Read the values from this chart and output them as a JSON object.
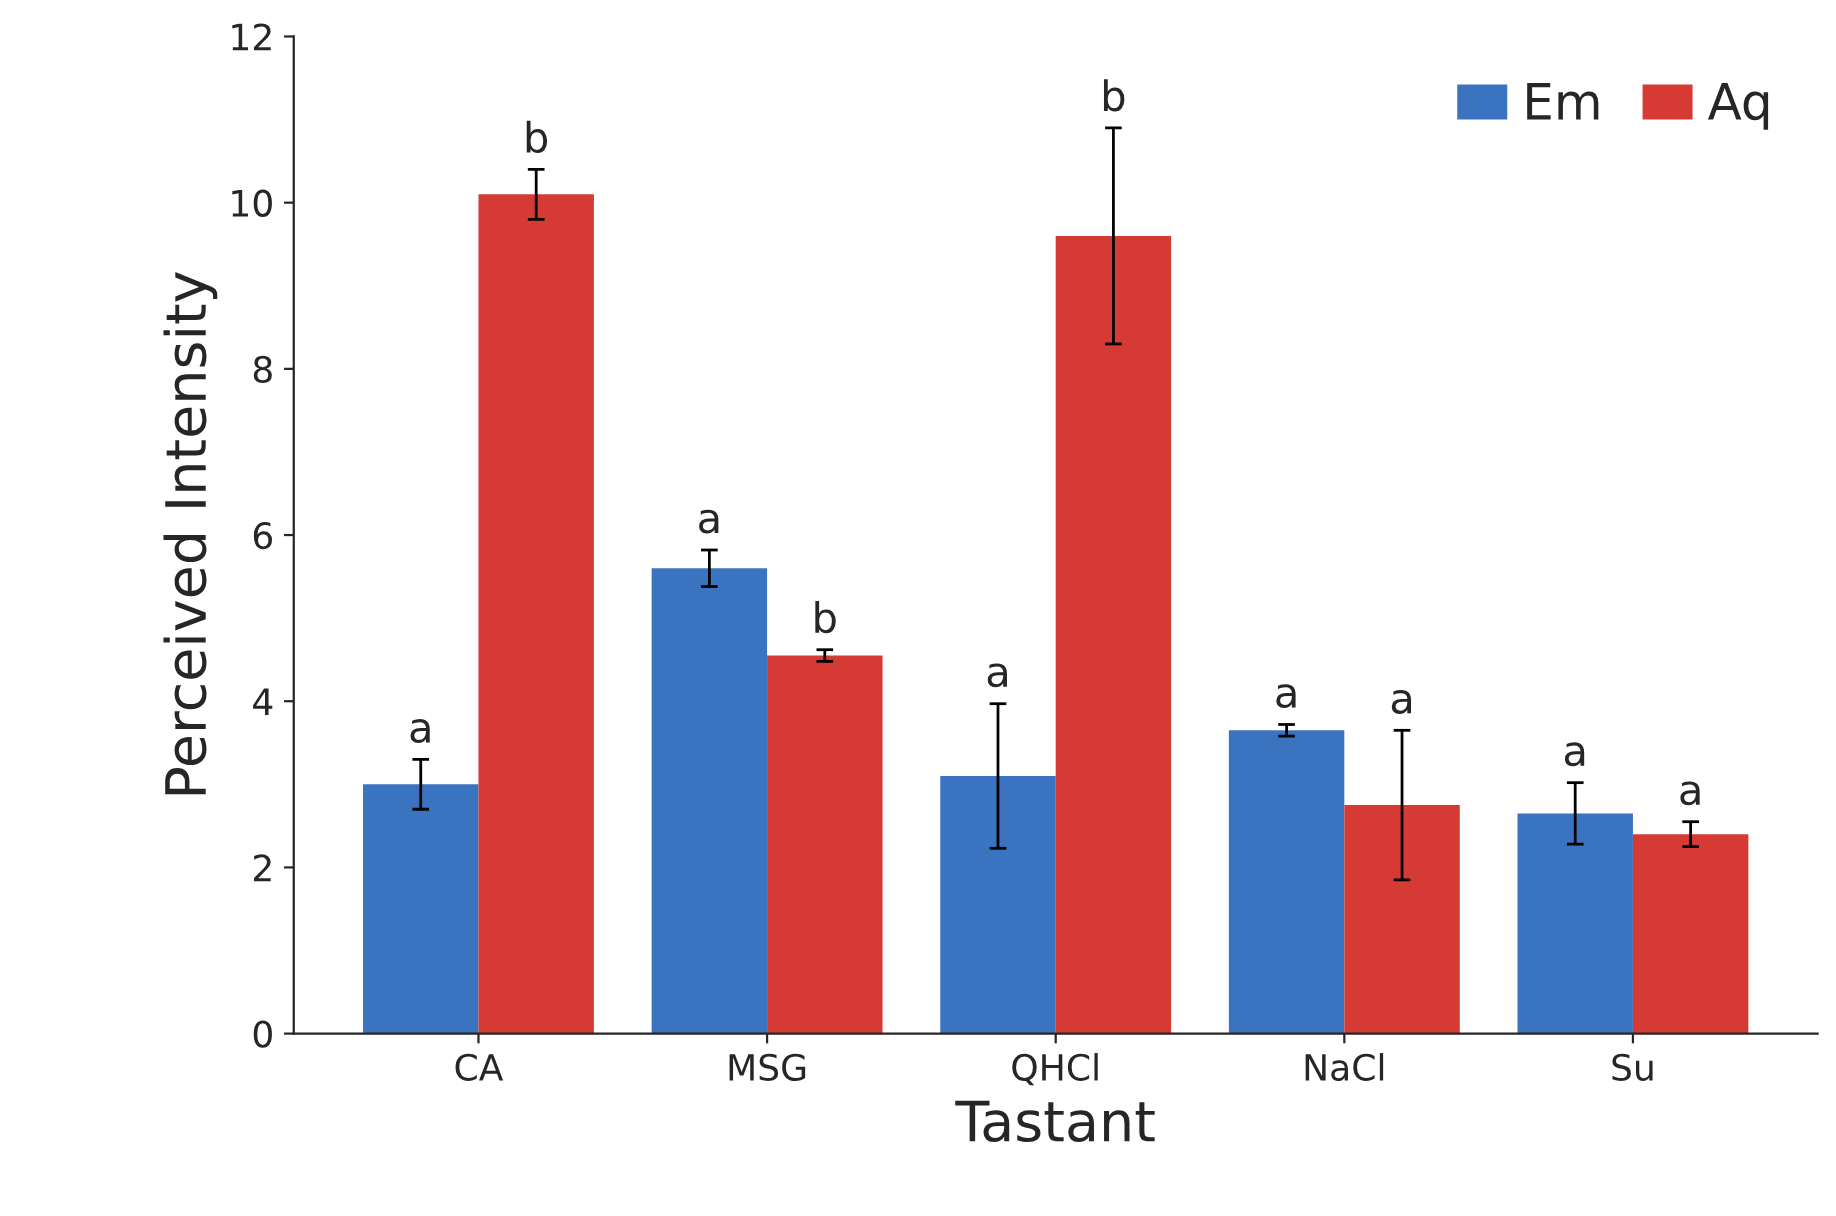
{
  "chart_data": {
    "type": "bar",
    "xlabel": "Tastant",
    "ylabel": "Perceived Intensity",
    "categories": [
      "CA",
      "MSG",
      "QHCl",
      "NaCl",
      "Su"
    ],
    "series": [
      {
        "name": "Em",
        "color": "#3a73c0",
        "values": [
          3.0,
          5.6,
          3.1,
          3.65,
          2.65
        ],
        "errors": [
          0.3,
          0.22,
          0.87,
          0.07,
          0.37
        ],
        "value_labels": [
          "a",
          "a",
          "a",
          "a",
          "a"
        ]
      },
      {
        "name": "Aq",
        "color": "#d63a35",
        "values": [
          10.1,
          4.55,
          9.6,
          2.75,
          2.4
        ],
        "errors": [
          0.3,
          0.07,
          1.3,
          0.9,
          0.15
        ],
        "value_labels": [
          "b",
          "b",
          "b",
          "a",
          "a"
        ]
      }
    ],
    "ylim": [
      0,
      12
    ],
    "yticks": [
      0,
      2,
      4,
      6,
      8,
      10,
      12
    ],
    "grid": false,
    "legend": "top right"
  }
}
